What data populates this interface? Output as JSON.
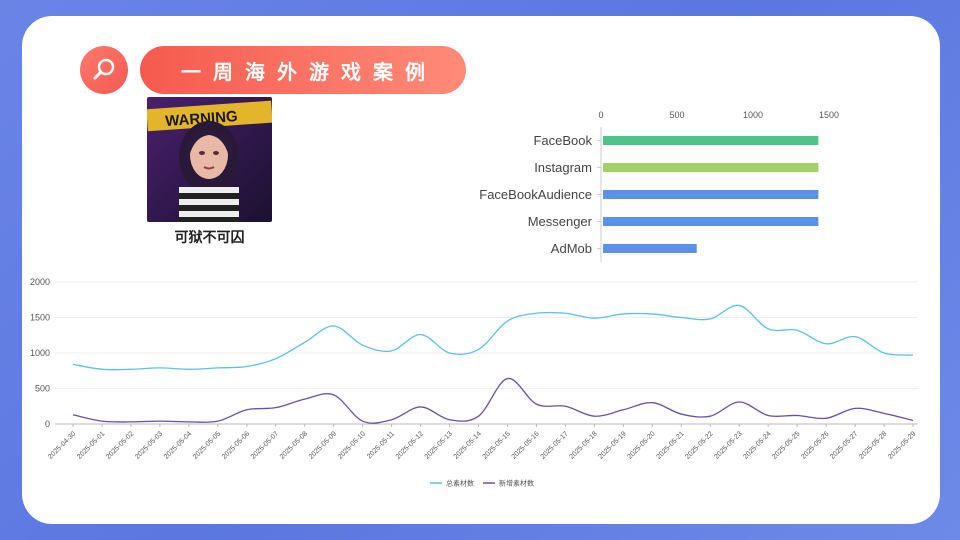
{
  "header": {
    "title": "一周海外游戏案例",
    "icon": "search-icon"
  },
  "game": {
    "name": "可狱不可囚",
    "art_text": "WARNING"
  },
  "colors": {
    "accent": "#f55a4e",
    "total_line": "#5bc0e6",
    "new_line": "#6a4fa8"
  },
  "chart_data": [
    {
      "type": "bar",
      "orientation": "horizontal",
      "categories": [
        "FaceBook",
        "Instagram",
        "FaceBookAudience",
        "Messenger",
        "AdMob"
      ],
      "values": [
        1430,
        1430,
        1430,
        1430,
        630
      ],
      "colors": [
        "#4ec38a",
        "#a4cf6a",
        "#5b92e5",
        "#5b92e5",
        "#5b92e5"
      ],
      "xlim": [
        0,
        1500
      ],
      "xticks": [
        0,
        500,
        1000,
        1500
      ],
      "axis_position": "top"
    },
    {
      "type": "line",
      "x": [
        "2025-04-30",
        "2025-05-01",
        "2025-05-02",
        "2025-05-03",
        "2025-05-04",
        "2025-05-05",
        "2025-05-06",
        "2025-05-07",
        "2025-05-08",
        "2025-05-09",
        "2025-05-10",
        "2025-05-11",
        "2025-05-12",
        "2025-05-13",
        "2025-05-14",
        "2025-05-15",
        "2025-05-16",
        "2025-05-17",
        "2025-05-18",
        "2025-05-19",
        "2025-05-20",
        "2025-05-21",
        "2025-05-22",
        "2025-05-23",
        "2025-05-24",
        "2025-05-25",
        "2025-05-26",
        "2025-05-27",
        "2025-05-28",
        "2025-05-29"
      ],
      "series": [
        {
          "name": "总素材数",
          "color": "#5bc0e6",
          "values": [
            840,
            770,
            770,
            790,
            770,
            790,
            810,
            920,
            1150,
            1380,
            1110,
            1030,
            1260,
            1000,
            1050,
            1450,
            1560,
            1560,
            1490,
            1550,
            1550,
            1500,
            1480,
            1670,
            1340,
            1320,
            1130,
            1230,
            1000,
            970
          ]
        },
        {
          "name": "新增素材数",
          "color": "#6a4fa8",
          "values": [
            130,
            40,
            30,
            40,
            30,
            40,
            200,
            230,
            350,
            410,
            40,
            60,
            240,
            60,
            110,
            640,
            280,
            250,
            110,
            200,
            300,
            140,
            110,
            310,
            120,
            120,
            80,
            220,
            150,
            50
          ]
        }
      ],
      "ylim": [
        0,
        2000
      ],
      "yticks": [
        0,
        500,
        1000,
        1500,
        2000
      ],
      "grid": true,
      "legend": "bottom"
    }
  ]
}
